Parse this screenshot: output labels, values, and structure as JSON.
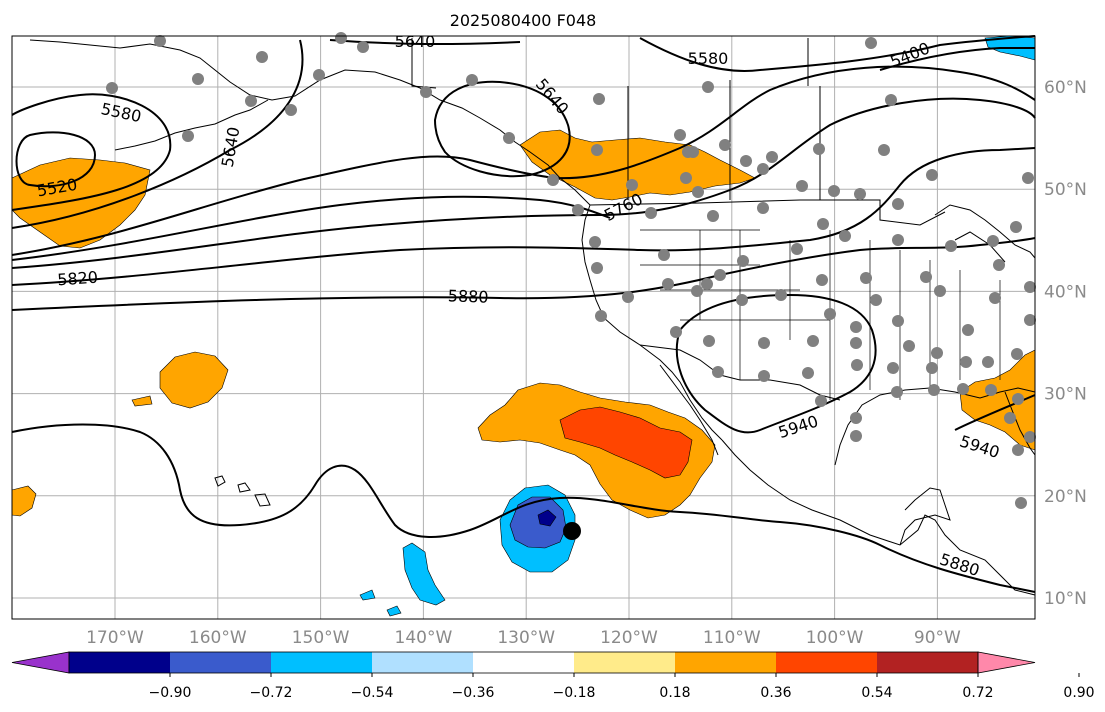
{
  "title": "2025080400 F048",
  "lon_ticks": [
    {
      "value": -170,
      "label": "170°W"
    },
    {
      "value": -160,
      "label": "160°W"
    },
    {
      "value": -150,
      "label": "150°W"
    },
    {
      "value": -140,
      "label": "140°W"
    },
    {
      "value": -130,
      "label": "130°W"
    },
    {
      "value": -120,
      "label": "120°W"
    },
    {
      "value": -110,
      "label": "110°W"
    },
    {
      "value": -100,
      "label": "100°W"
    },
    {
      "value": -90,
      "label": "90°W"
    }
  ],
  "lat_ticks": [
    {
      "value": 10,
      "label": "10°N"
    },
    {
      "value": 20,
      "label": "20°N"
    },
    {
      "value": 30,
      "label": "30°N"
    },
    {
      "value": 40,
      "label": "40°N"
    },
    {
      "value": 50,
      "label": "50°N"
    },
    {
      "value": 60,
      "label": "60°N"
    }
  ],
  "contour_labels": [
    "5640",
    "5580",
    "5400",
    "5580",
    "5640",
    "5640",
    "5520",
    "5760",
    "5820",
    "5880",
    "5940",
    "5940",
    "5880"
  ],
  "colorbar": {
    "colors": [
      "#9932cc",
      "#00008b",
      "#3a5bcc",
      "#00bfff",
      "#b0e0ff",
      "#ffffff",
      "#ffeb8a",
      "#ffa500",
      "#ff4500",
      "#b22222",
      "#ff88aa"
    ],
    "tick_labels": [
      "−0.90",
      "−0.72",
      "−0.54",
      "−0.36",
      "−0.18",
      "0.18",
      "0.36",
      "0.54",
      "0.72",
      "0.90"
    ]
  },
  "colors": {
    "land_outline": "#000000",
    "contour": "#000000",
    "grid": "#b0b0b0",
    "station_dot": "#808080",
    "marker": "#000000",
    "tick_text": "#8a8a8a"
  }
}
